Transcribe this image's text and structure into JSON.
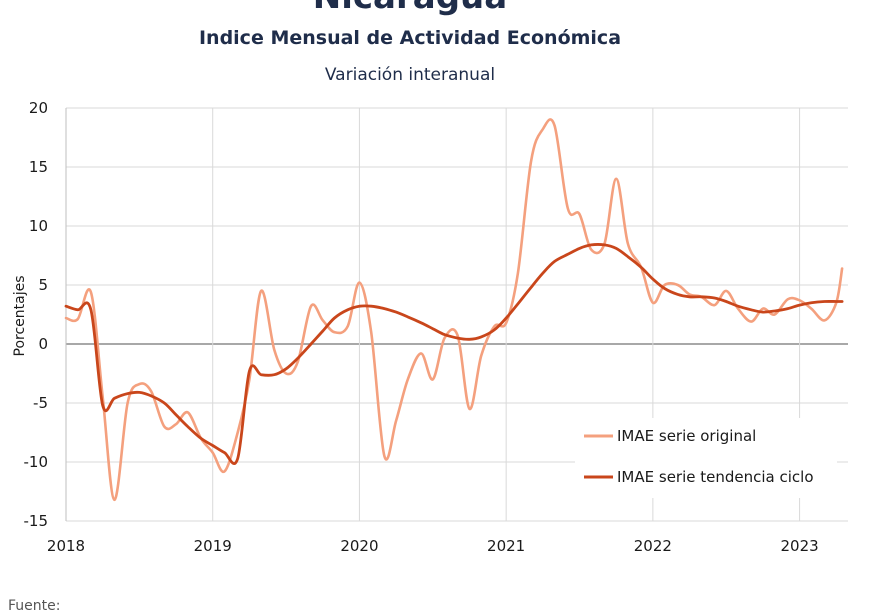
{
  "header": {
    "country": "Nicaragua",
    "title": "Indice Mensual de  Actividad Económica",
    "subtitle": "Variación interanual"
  },
  "source_label": "Fuente:",
  "colors": {
    "original": "#f4a07e",
    "trend": "#c9461b",
    "grid": "#d9d9d9",
    "zero_line": "#8c8c8c"
  },
  "chart_data": {
    "type": "line",
    "title": "Indice Mensual de  Actividad Económica",
    "subtitle": "Variación interanual",
    "ylabel": "Porcentajes",
    "xlabel": "",
    "ylim": [
      -15,
      20
    ],
    "yticks": [
      20,
      15,
      10,
      5,
      0,
      -5,
      -10,
      -15
    ],
    "xlim": [
      2018.0,
      2023.33
    ],
    "xticks": [
      2018,
      2019,
      2020,
      2021,
      2022,
      2023
    ],
    "grid": true,
    "legend_position": "bottom-right",
    "series": [
      {
        "name": "IMAE serie original",
        "points": [
          [
            2018.0,
            2.2
          ],
          [
            2018.08,
            2.1
          ],
          [
            2018.17,
            4.4
          ],
          [
            2018.25,
            -4.5
          ],
          [
            2018.33,
            -13.2
          ],
          [
            2018.42,
            -5.0
          ],
          [
            2018.5,
            -3.4
          ],
          [
            2018.58,
            -4.0
          ],
          [
            2018.67,
            -7.0
          ],
          [
            2018.75,
            -6.8
          ],
          [
            2018.83,
            -5.8
          ],
          [
            2018.92,
            -8.0
          ],
          [
            2019.0,
            -9.2
          ],
          [
            2019.08,
            -10.8
          ],
          [
            2019.17,
            -7.5
          ],
          [
            2019.25,
            -3.0
          ],
          [
            2019.33,
            4.5
          ],
          [
            2019.42,
            -0.5
          ],
          [
            2019.5,
            -2.5
          ],
          [
            2019.58,
            -1.5
          ],
          [
            2019.67,
            3.2
          ],
          [
            2019.75,
            2.0
          ],
          [
            2019.83,
            1.0
          ],
          [
            2019.92,
            1.5
          ],
          [
            2020.0,
            5.2
          ],
          [
            2020.08,
            1.0
          ],
          [
            2020.17,
            -9.5
          ],
          [
            2020.25,
            -6.5
          ],
          [
            2020.33,
            -3.0
          ],
          [
            2020.42,
            -0.8
          ],
          [
            2020.5,
            -3.0
          ],
          [
            2020.58,
            0.5
          ],
          [
            2020.67,
            0.7
          ],
          [
            2020.75,
            -5.5
          ],
          [
            2020.83,
            -1.0
          ],
          [
            2020.92,
            1.5
          ],
          [
            2021.0,
            1.8
          ],
          [
            2021.08,
            6.0
          ],
          [
            2021.17,
            15.5
          ],
          [
            2021.25,
            18.2
          ],
          [
            2021.33,
            18.5
          ],
          [
            2021.42,
            11.5
          ],
          [
            2021.5,
            11.0
          ],
          [
            2021.58,
            8.0
          ],
          [
            2021.67,
            8.5
          ],
          [
            2021.75,
            14.0
          ],
          [
            2021.83,
            8.5
          ],
          [
            2021.92,
            6.5
          ],
          [
            2022.0,
            3.5
          ],
          [
            2022.08,
            5.0
          ],
          [
            2022.17,
            5.0
          ],
          [
            2022.25,
            4.2
          ],
          [
            2022.33,
            4.0
          ],
          [
            2022.42,
            3.3
          ],
          [
            2022.5,
            4.5
          ],
          [
            2022.58,
            3.0
          ],
          [
            2022.67,
            1.9
          ],
          [
            2022.75,
            3.0
          ],
          [
            2022.83,
            2.5
          ],
          [
            2022.92,
            3.8
          ],
          [
            2023.0,
            3.7
          ],
          [
            2023.08,
            3.0
          ],
          [
            2023.17,
            2.0
          ],
          [
            2023.25,
            3.5
          ],
          [
            2023.29,
            6.4
          ]
        ]
      },
      {
        "name": "IMAE serie  tendencia ciclo",
        "points": [
          [
            2018.0,
            3.2
          ],
          [
            2018.08,
            2.9
          ],
          [
            2018.17,
            2.9
          ],
          [
            2018.25,
            -5.2
          ],
          [
            2018.33,
            -4.6
          ],
          [
            2018.42,
            -4.2
          ],
          [
            2018.5,
            -4.1
          ],
          [
            2018.58,
            -4.4
          ],
          [
            2018.67,
            -5.0
          ],
          [
            2018.75,
            -6.0
          ],
          [
            2018.83,
            -7.0
          ],
          [
            2018.92,
            -8.0
          ],
          [
            2019.0,
            -8.6
          ],
          [
            2019.08,
            -9.2
          ],
          [
            2019.17,
            -9.7
          ],
          [
            2019.25,
            -2.3
          ],
          [
            2019.33,
            -2.6
          ],
          [
            2019.42,
            -2.6
          ],
          [
            2019.5,
            -2.1
          ],
          [
            2019.58,
            -1.2
          ],
          [
            2019.67,
            0.0
          ],
          [
            2019.75,
            1.1
          ],
          [
            2019.83,
            2.2
          ],
          [
            2019.92,
            2.9
          ],
          [
            2020.0,
            3.2
          ],
          [
            2020.08,
            3.2
          ],
          [
            2020.17,
            3.0
          ],
          [
            2020.25,
            2.7
          ],
          [
            2020.33,
            2.3
          ],
          [
            2020.42,
            1.8
          ],
          [
            2020.5,
            1.3
          ],
          [
            2020.58,
            0.8
          ],
          [
            2020.67,
            0.5
          ],
          [
            2020.75,
            0.4
          ],
          [
            2020.83,
            0.6
          ],
          [
            2020.92,
            1.2
          ],
          [
            2021.0,
            2.2
          ],
          [
            2021.08,
            3.4
          ],
          [
            2021.17,
            4.8
          ],
          [
            2021.25,
            6.0
          ],
          [
            2021.33,
            7.0
          ],
          [
            2021.42,
            7.6
          ],
          [
            2021.5,
            8.1
          ],
          [
            2021.58,
            8.4
          ],
          [
            2021.67,
            8.4
          ],
          [
            2021.75,
            8.1
          ],
          [
            2021.83,
            7.4
          ],
          [
            2021.92,
            6.5
          ],
          [
            2022.0,
            5.5
          ],
          [
            2022.08,
            4.7
          ],
          [
            2022.17,
            4.2
          ],
          [
            2022.25,
            4.0
          ],
          [
            2022.33,
            4.0
          ],
          [
            2022.42,
            3.9
          ],
          [
            2022.5,
            3.6
          ],
          [
            2022.58,
            3.2
          ],
          [
            2022.67,
            2.9
          ],
          [
            2022.75,
            2.7
          ],
          [
            2022.83,
            2.8
          ],
          [
            2022.92,
            3.0
          ],
          [
            2023.0,
            3.3
          ],
          [
            2023.08,
            3.5
          ],
          [
            2023.17,
            3.6
          ],
          [
            2023.25,
            3.6
          ],
          [
            2023.29,
            3.6
          ]
        ]
      }
    ]
  }
}
